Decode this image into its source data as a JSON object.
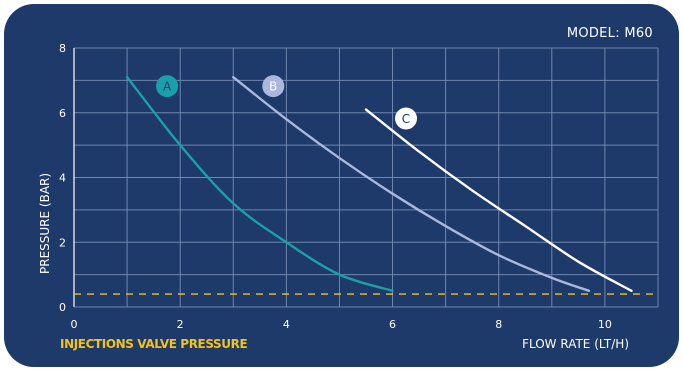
{
  "header": {
    "model": "MODEL: M60"
  },
  "colors": {
    "background": "#1e3a6b",
    "grid": "#6f86ad",
    "reference_line": "#f2c21b",
    "series_A": "#1aa0a8",
    "series_B": "#a9b8dc",
    "series_C": "#ffffff"
  },
  "chart_data": {
    "type": "line",
    "title": "",
    "xlabel": "FLOW RATE (LT/H)",
    "ylabel": "PRESSURE (BAR)",
    "xlim": [
      0,
      11
    ],
    "ylim": [
      0,
      8
    ],
    "xticks": [
      0,
      2,
      4,
      6,
      8,
      10
    ],
    "yticks": [
      0,
      2,
      4,
      6,
      8
    ],
    "grid": true,
    "series": [
      {
        "name": "A",
        "points": [
          [
            1,
            7.1
          ],
          [
            2,
            5.0
          ],
          [
            3,
            3.2
          ],
          [
            4,
            2.0
          ],
          [
            5,
            1.0
          ],
          [
            6,
            0.5
          ]
        ]
      },
      {
        "name": "B",
        "points": [
          [
            3,
            7.1
          ],
          [
            4,
            5.8
          ],
          [
            5,
            4.6
          ],
          [
            6,
            3.5
          ],
          [
            7,
            2.5
          ],
          [
            8,
            1.6
          ],
          [
            9,
            0.9
          ],
          [
            9.7,
            0.5
          ]
        ]
      },
      {
        "name": "C",
        "points": [
          [
            5.5,
            6.1
          ],
          [
            6.5,
            4.8
          ],
          [
            7.5,
            3.6
          ],
          [
            8.5,
            2.5
          ],
          [
            9.5,
            1.4
          ],
          [
            10.5,
            0.5
          ]
        ]
      }
    ],
    "reference_line": {
      "y": 0.4,
      "label": "INJECTIONS VALVE PRESSURE"
    }
  }
}
